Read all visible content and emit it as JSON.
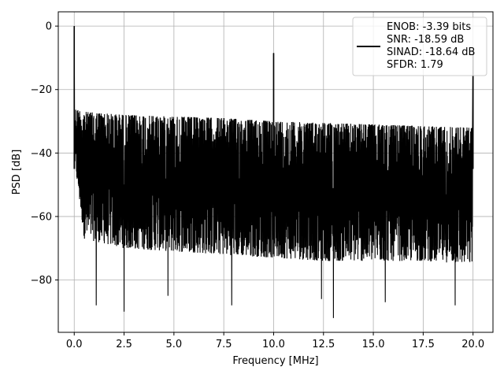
{
  "chart_data": {
    "type": "line",
    "title": "",
    "xlabel": "Frequency [MHz]",
    "ylabel": "PSD [dB]",
    "xlim": [
      -0.8,
      21.0
    ],
    "ylim": [
      -96.5,
      4.5
    ],
    "grid": true,
    "legend_placement": "top-right",
    "legend_lines": [
      "ENOB: -3.39 bits",
      "SNR: -18.59 dB",
      "SINAD: -18.64 dB",
      "SFDR: 1.79"
    ],
    "x_ticks": [
      0.0,
      2.5,
      5.0,
      7.5,
      10.0,
      12.5,
      15.0,
      17.5,
      20.0
    ],
    "x_tick_labels": [
      "0.0",
      "2.5",
      "5.0",
      "7.5",
      "10.0",
      "12.5",
      "15.0",
      "17.5",
      "20.0"
    ],
    "y_ticks": [
      0,
      -20,
      -40,
      -60,
      -80
    ],
    "y_tick_labels": [
      "0",
      "−20",
      "−40",
      "−60",
      "−80"
    ],
    "series": [
      {
        "color": "#000000",
        "noise_floor_upper_db": {
          "x": [
            0.0,
            0.5,
            2.5,
            5.0,
            7.5,
            10.0,
            12.5,
            15.0,
            17.5,
            20.0
          ],
          "y": [
            -26,
            -27,
            -28,
            -28.5,
            -29,
            -30,
            -30.5,
            -31,
            -31.5,
            -32
          ]
        },
        "noise_floor_lower_db": {
          "x": [
            0.0,
            0.5,
            2.5,
            5.0,
            7.5,
            10.0,
            12.5,
            15.0,
            17.5,
            20.0
          ],
          "y": [
            -42,
            -67,
            -70,
            -71,
            -72,
            -73,
            -74,
            -74,
            -74,
            -75
          ]
        },
        "peaks": [
          {
            "x": 0.0,
            "y": 0.0
          },
          {
            "x": 10.0,
            "y": -8.5
          },
          {
            "x": 20.0,
            "y": -8.0
          }
        ],
        "notable_dips": [
          {
            "x": 1.1,
            "y": -88.0
          },
          {
            "x": 2.5,
            "y": -90.0
          },
          {
            "x": 4.7,
            "y": -85.0
          },
          {
            "x": 7.9,
            "y": -88.0
          },
          {
            "x": 12.4,
            "y": -86.0
          },
          {
            "x": 13.0,
            "y": -92.0
          },
          {
            "x": 15.6,
            "y": -87.0
          },
          {
            "x": 19.1,
            "y": -88.0
          }
        ]
      }
    ]
  }
}
